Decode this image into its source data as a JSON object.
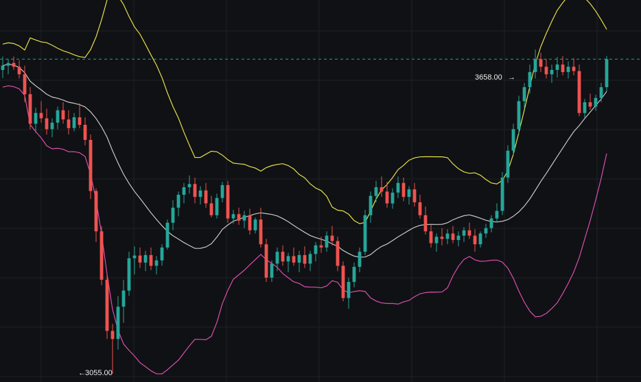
{
  "colors": {
    "background": "#101114",
    "grid": "#1f2126",
    "up": "#26a69a",
    "down": "#ef5350",
    "upper_band": "#e6e04a",
    "middle_band": "#c8c8c8",
    "lower_band": "#d94fb0",
    "current_price_line": "#26a69a",
    "annotation_text": "#f0f0f0"
  },
  "annotations": {
    "high_label": "3658.00",
    "high_arrow": "→",
    "low_label": "3055.00",
    "low_arrow": "←"
  },
  "chart_data": {
    "type": "candlestick",
    "indicator": "bollinger-bands",
    "grid": true,
    "ylim": [
      3040,
      3750
    ],
    "current_price": 3640,
    "candles": [
      [
        3620,
        3645,
        3605,
        3628
      ],
      [
        3628,
        3640,
        3612,
        3633
      ],
      [
        3633,
        3645,
        3620,
        3626
      ],
      [
        3626,
        3638,
        3604,
        3612
      ],
      [
        3612,
        3628,
        3560,
        3575
      ],
      [
        3575,
        3588,
        3510,
        3520
      ],
      [
        3520,
        3550,
        3503,
        3540
      ],
      [
        3540,
        3562,
        3522,
        3530
      ],
      [
        3530,
        3548,
        3500,
        3510
      ],
      [
        3510,
        3530,
        3495,
        3522
      ],
      [
        3522,
        3552,
        3510,
        3545
      ],
      [
        3545,
        3560,
        3520,
        3528
      ],
      [
        3528,
        3545,
        3500,
        3512
      ],
      [
        3512,
        3540,
        3506,
        3532
      ],
      [
        3532,
        3558,
        3512,
        3518
      ],
      [
        3518,
        3532,
        3480,
        3490
      ],
      [
        3490,
        3500,
        3380,
        3395
      ],
      [
        3395,
        3400,
        3300,
        3320
      ],
      [
        3320,
        3330,
        3220,
        3230
      ],
      [
        3230,
        3240,
        3120,
        3135
      ],
      [
        3135,
        3148,
        3055,
        3120
      ],
      [
        3120,
        3200,
        3100,
        3180
      ],
      [
        3180,
        3230,
        3150,
        3210
      ],
      [
        3210,
        3282,
        3200,
        3270
      ],
      [
        3270,
        3292,
        3240,
        3275
      ],
      [
        3275,
        3290,
        3252,
        3262
      ],
      [
        3262,
        3284,
        3246,
        3276
      ],
      [
        3276,
        3290,
        3248,
        3256
      ],
      [
        3256,
        3274,
        3240,
        3266
      ],
      [
        3266,
        3296,
        3256,
        3290
      ],
      [
        3290,
        3342,
        3286,
        3336
      ],
      [
        3336,
        3378,
        3322,
        3364
      ],
      [
        3364,
        3394,
        3348,
        3388
      ],
      [
        3388,
        3410,
        3372,
        3402
      ],
      [
        3402,
        3424,
        3390,
        3408
      ],
      [
        3408,
        3420,
        3372,
        3384
      ],
      [
        3384,
        3404,
        3370,
        3396
      ],
      [
        3396,
        3410,
        3364,
        3372
      ],
      [
        3372,
        3386,
        3346,
        3350
      ],
      [
        3350,
        3390,
        3344,
        3382
      ],
      [
        3382,
        3412,
        3374,
        3406
      ],
      [
        3406,
        3414,
        3336,
        3344
      ],
      [
        3344,
        3360,
        3334,
        3352
      ],
      [
        3352,
        3364,
        3332,
        3340
      ],
      [
        3340,
        3358,
        3326,
        3350
      ],
      [
        3350,
        3362,
        3314,
        3322
      ],
      [
        3322,
        3346,
        3316,
        3342
      ],
      [
        3342,
        3364,
        3290,
        3296
      ],
      [
        3296,
        3306,
        3226,
        3234
      ],
      [
        3234,
        3266,
        3226,
        3260
      ],
      [
        3260,
        3290,
        3246,
        3282
      ],
      [
        3282,
        3294,
        3256,
        3264
      ],
      [
        3264,
        3280,
        3244,
        3274
      ],
      [
        3274,
        3290,
        3256,
        3262
      ],
      [
        3262,
        3284,
        3244,
        3276
      ],
      [
        3276,
        3292,
        3252,
        3260
      ],
      [
        3260,
        3284,
        3246,
        3278
      ],
      [
        3278,
        3300,
        3264,
        3294
      ],
      [
        3294,
        3310,
        3280,
        3290
      ],
      [
        3290,
        3320,
        3282,
        3312
      ],
      [
        3312,
        3330,
        3294,
        3302
      ],
      [
        3302,
        3310,
        3246,
        3256
      ],
      [
        3256,
        3264,
        3190,
        3196
      ],
      [
        3196,
        3234,
        3176,
        3226
      ],
      [
        3226,
        3262,
        3216,
        3254
      ],
      [
        3254,
        3290,
        3244,
        3282
      ],
      [
        3282,
        3360,
        3276,
        3350
      ],
      [
        3350,
        3394,
        3336,
        3386
      ],
      [
        3386,
        3414,
        3374,
        3402
      ],
      [
        3402,
        3422,
        3384,
        3394
      ],
      [
        3394,
        3412,
        3364,
        3372
      ],
      [
        3372,
        3400,
        3362,
        3392
      ],
      [
        3392,
        3422,
        3382,
        3410
      ],
      [
        3410,
        3420,
        3376,
        3384
      ],
      [
        3384,
        3404,
        3370,
        3398
      ],
      [
        3398,
        3410,
        3366,
        3374
      ],
      [
        3374,
        3388,
        3344,
        3350
      ],
      [
        3350,
        3366,
        3314,
        3320
      ],
      [
        3320,
        3332,
        3290,
        3298
      ],
      [
        3298,
        3316,
        3282,
        3310
      ],
      [
        3310,
        3326,
        3294,
        3306
      ],
      [
        3306,
        3324,
        3296,
        3316
      ],
      [
        3316,
        3330,
        3298,
        3304
      ],
      [
        3304,
        3320,
        3292,
        3312
      ],
      [
        3312,
        3328,
        3300,
        3322
      ],
      [
        3322,
        3336,
        3306,
        3312
      ],
      [
        3312,
        3324,
        3282,
        3296
      ],
      [
        3296,
        3320,
        3290,
        3316
      ],
      [
        3316,
        3334,
        3308,
        3326
      ],
      [
        3326,
        3350,
        3318,
        3344
      ],
      [
        3344,
        3372,
        3336,
        3358
      ],
      [
        3358,
        3430,
        3350,
        3420
      ],
      [
        3420,
        3480,
        3410,
        3470
      ],
      [
        3470,
        3520,
        3460,
        3510
      ],
      [
        3510,
        3572,
        3500,
        3562
      ],
      [
        3562,
        3596,
        3548,
        3588
      ],
      [
        3588,
        3630,
        3576,
        3616
      ],
      [
        3616,
        3658,
        3604,
        3640
      ],
      [
        3640,
        3652,
        3616,
        3626
      ],
      [
        3626,
        3640,
        3604,
        3612
      ],
      [
        3612,
        3630,
        3596,
        3620
      ],
      [
        3620,
        3644,
        3606,
        3630
      ],
      [
        3630,
        3646,
        3610,
        3616
      ],
      [
        3616,
        3636,
        3604,
        3626
      ],
      [
        3626,
        3642,
        3610,
        3618
      ],
      [
        3618,
        3630,
        3534,
        3540
      ],
      [
        3540,
        3566,
        3530,
        3560
      ],
      [
        3560,
        3576,
        3546,
        3552
      ],
      [
        3552,
        3574,
        3544,
        3568
      ],
      [
        3568,
        3596,
        3560,
        3588
      ],
      [
        3588,
        3646,
        3580,
        3640
      ]
    ]
  }
}
